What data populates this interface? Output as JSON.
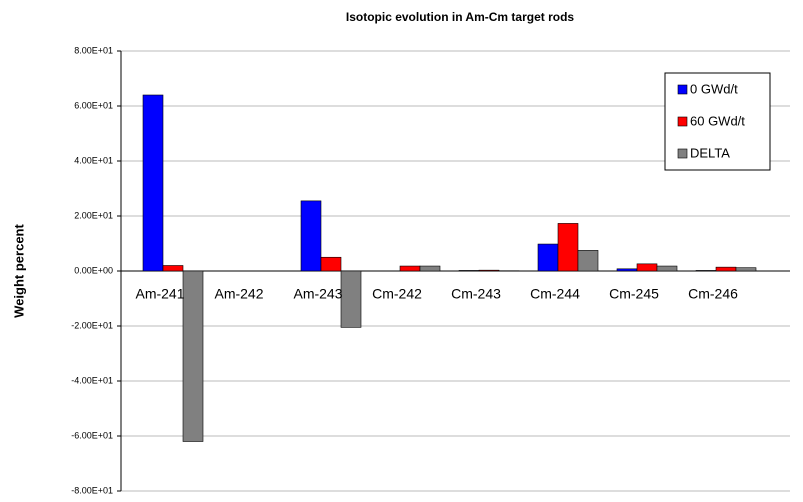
{
  "chart_data": {
    "type": "bar",
    "title": "Isotopic evolution in Am-Cm target rods",
    "y_label": "Weight percent",
    "categories": [
      "Am-241",
      "Am-242",
      "Am-243",
      "Cm-242",
      "Cm-243",
      "Cm-244",
      "Cm-245",
      "Cm-246"
    ],
    "series": [
      {
        "name": "0 GWd/t",
        "color": "#0000ff",
        "values": [
          64,
          0,
          25.5,
          0,
          0.2,
          9.8,
          0.8,
          0.2
        ]
      },
      {
        "name": "60 GWd/t",
        "color": "#ff0000",
        "values": [
          2,
          0,
          5,
          1.8,
          0.3,
          17.3,
          2.6,
          1.4
        ]
      },
      {
        "name": "DELTA",
        "color": "#808080",
        "values": [
          -62,
          0,
          -20.5,
          1.8,
          0.1,
          7.5,
          1.8,
          1.2
        ]
      }
    ],
    "ylim": [
      -80,
      80
    ],
    "yticks": [
      {
        "value": -80,
        "label": "-8.00E+01"
      },
      {
        "value": -60,
        "label": "-6.00E+01"
      },
      {
        "value": -40,
        "label": "-4.00E+01"
      },
      {
        "value": -20,
        "label": "-2.00E+01"
      },
      {
        "value": 0,
        "label": "0.00E+00"
      },
      {
        "value": 20,
        "label": "2.00E+01"
      },
      {
        "value": 40,
        "label": "4.00E+01"
      },
      {
        "value": 60,
        "label": "6.00E+01"
      },
      {
        "value": 80,
        "label": "8.00E+01"
      }
    ],
    "grid": true,
    "legend": "upper right"
  }
}
